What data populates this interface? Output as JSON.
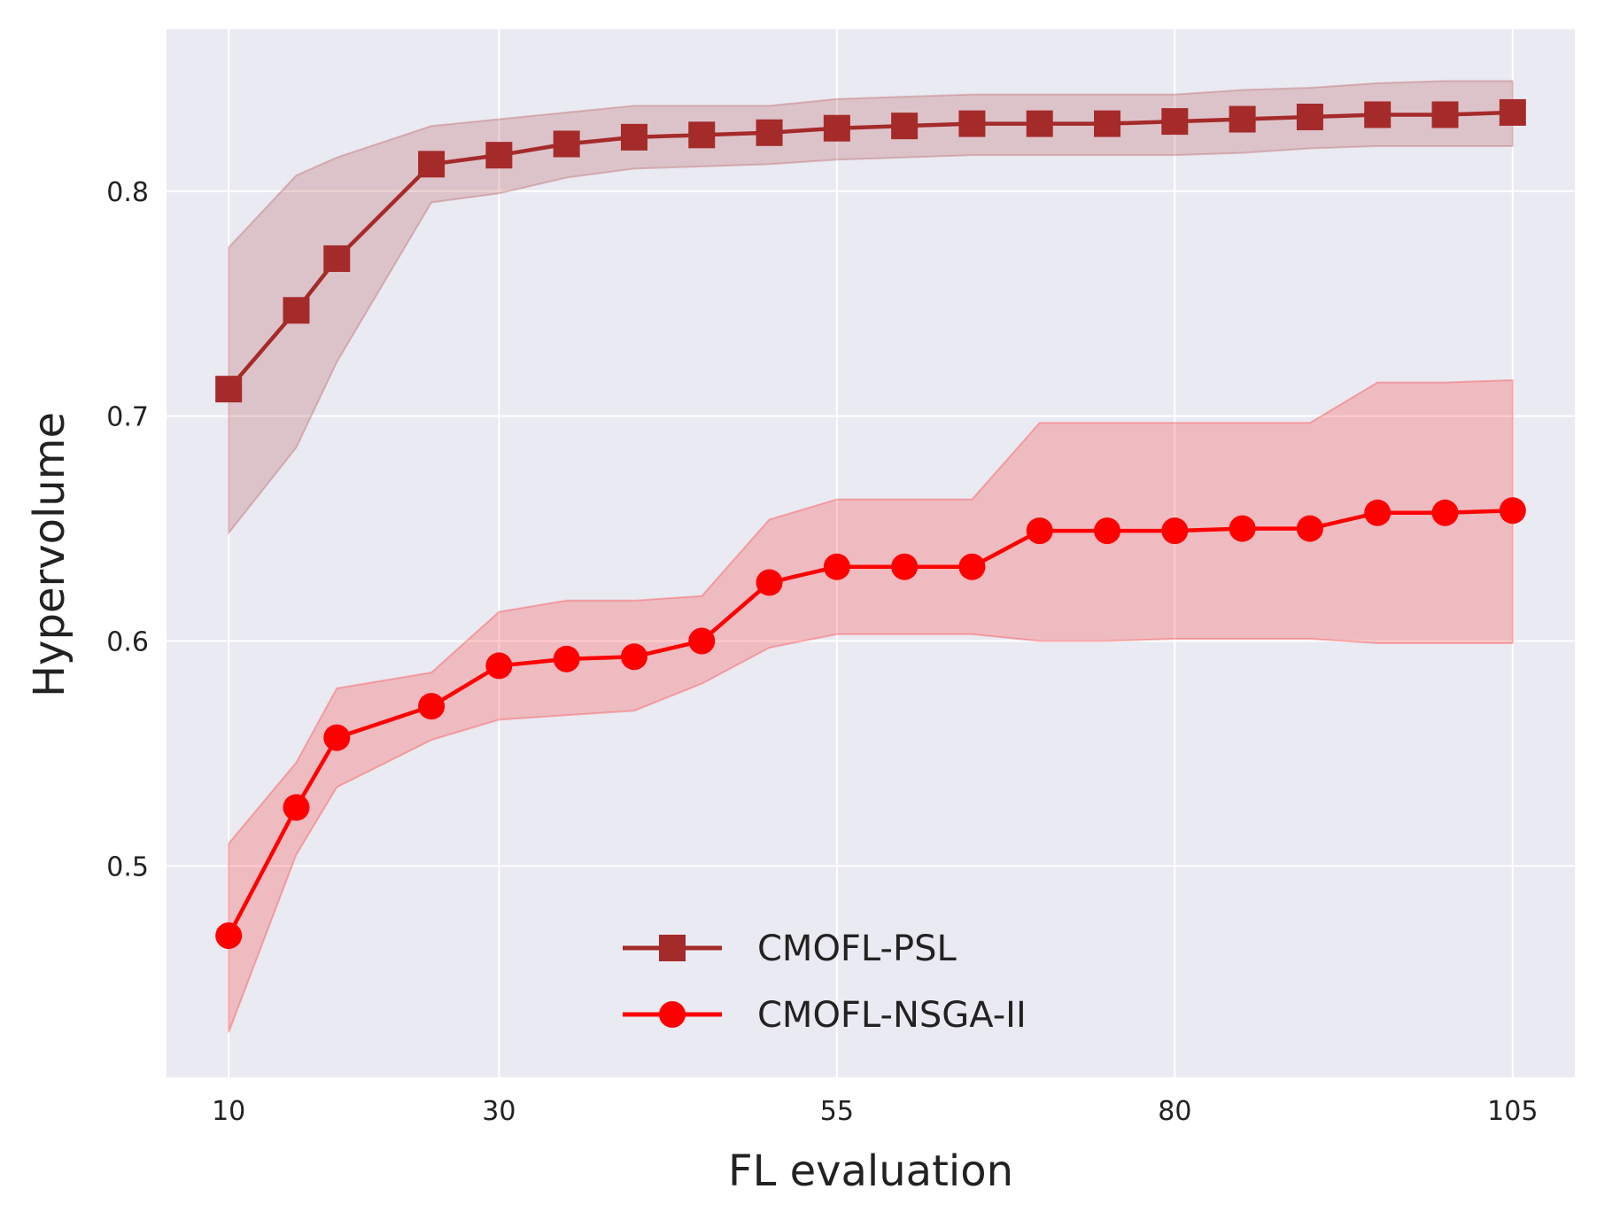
{
  "chart_data": {
    "type": "line",
    "title": "",
    "xlabel": "FL evaluation",
    "ylabel": "Hypervolume",
    "xlim": [
      5.4,
      109.6
    ],
    "ylim": [
      0.406,
      0.872
    ],
    "xticks": [
      10,
      30,
      55,
      80,
      105
    ],
    "xtick_labels": [
      "10",
      "30",
      "55",
      "80",
      "105"
    ],
    "yticks": [
      0.5,
      0.6,
      0.7,
      0.8
    ],
    "ytick_labels": [
      "0.5",
      "0.6",
      "0.7",
      "0.8"
    ],
    "grid": true,
    "legend_position": "bottom-center",
    "x": [
      10,
      15,
      18,
      25,
      30,
      35,
      40,
      45,
      50,
      55,
      60,
      65,
      70,
      75,
      80,
      85,
      90,
      95,
      100,
      105
    ],
    "series": [
      {
        "name": "CMOFL-PSL",
        "marker": "square",
        "color": "#a52a2a",
        "band_color": "#a52a2a",
        "values": [
          0.712,
          0.747,
          0.77,
          0.812,
          0.816,
          0.821,
          0.824,
          0.825,
          0.826,
          0.828,
          0.829,
          0.83,
          0.83,
          0.83,
          0.831,
          0.832,
          0.833,
          0.834,
          0.834,
          0.835
        ],
        "upper": [
          0.775,
          0.807,
          0.815,
          0.829,
          0.832,
          0.835,
          0.838,
          0.838,
          0.838,
          0.841,
          0.842,
          0.843,
          0.843,
          0.843,
          0.843,
          0.845,
          0.846,
          0.848,
          0.849,
          0.849
        ],
        "lower": [
          0.648,
          0.686,
          0.724,
          0.795,
          0.799,
          0.806,
          0.81,
          0.811,
          0.812,
          0.814,
          0.815,
          0.816,
          0.816,
          0.816,
          0.816,
          0.817,
          0.819,
          0.82,
          0.82,
          0.82
        ]
      },
      {
        "name": "CMOFL-NSGA-II",
        "marker": "circle",
        "color": "#ff0000",
        "band_color": "#ff0000",
        "values": [
          0.469,
          0.526,
          0.557,
          0.571,
          0.589,
          0.592,
          0.593,
          0.6,
          0.626,
          0.633,
          0.633,
          0.633,
          0.649,
          0.649,
          0.649,
          0.65,
          0.65,
          0.657,
          0.657,
          0.658
        ],
        "upper": [
          0.51,
          0.546,
          0.579,
          0.586,
          0.613,
          0.618,
          0.618,
          0.62,
          0.654,
          0.663,
          0.663,
          0.663,
          0.697,
          0.697,
          0.697,
          0.697,
          0.697,
          0.715,
          0.715,
          0.716
        ],
        "lower": [
          0.426,
          0.505,
          0.535,
          0.556,
          0.565,
          0.567,
          0.569,
          0.581,
          0.597,
          0.603,
          0.603,
          0.603,
          0.6,
          0.6,
          0.601,
          0.601,
          0.601,
          0.599,
          0.599,
          0.599
        ]
      }
    ]
  }
}
